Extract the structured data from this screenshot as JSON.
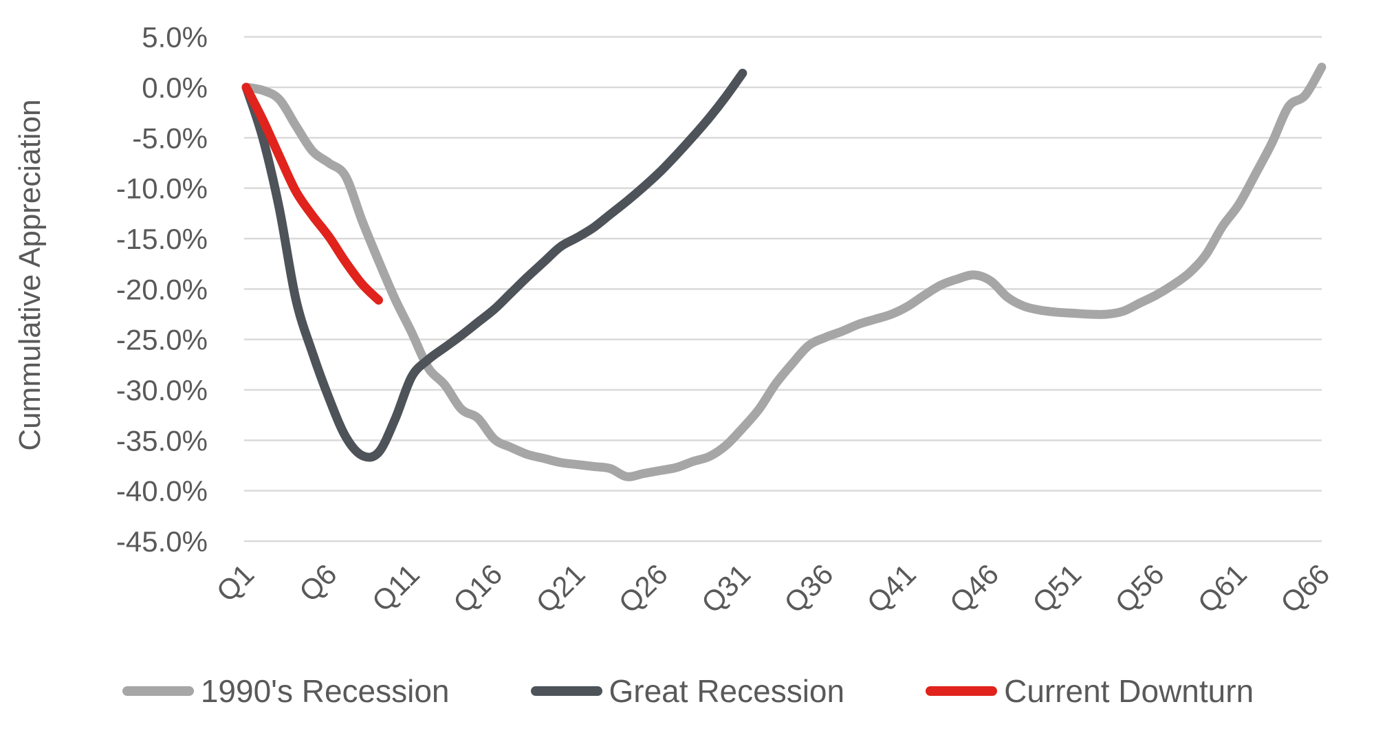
{
  "chart_data": {
    "type": "line",
    "ylabel": "Cummulative Appreciation",
    "xlabel": "",
    "ylim": [
      -45,
      5
    ],
    "ytick_step": 5,
    "grid": true,
    "legend_position": "bottom",
    "smooth_lines": true,
    "y_tick_labels": [
      "5.0%",
      "0.0%",
      "-5.0%",
      "-10.0%",
      "-15.0%",
      "-20.0%",
      "-25.0%",
      "-30.0%",
      "-35.0%",
      "-40.0%",
      "-45.0%"
    ],
    "x_tick_labels": [
      "Q1",
      "Q6",
      "Q11",
      "Q16",
      "Q21",
      "Q26",
      "Q31",
      "Q36",
      "Q41",
      "Q46",
      "Q51",
      "Q56",
      "Q61",
      "Q66"
    ],
    "x_tick_interval": 5,
    "x_categories_count": 66,
    "series": [
      {
        "name": "1990's Recession",
        "color": "#A6A6A6",
        "start_quarter": 1,
        "values": [
          0.0,
          -0.3,
          -1.2,
          -3.8,
          -6.3,
          -7.5,
          -8.8,
          -13.2,
          -17.2,
          -21.0,
          -24.3,
          -27.8,
          -29.5,
          -31.9,
          -32.8,
          -34.9,
          -35.7,
          -36.4,
          -36.8,
          -37.2,
          -37.4,
          -37.6,
          -37.8,
          -38.6,
          -38.3,
          -38.0,
          -37.7,
          -37.1,
          -36.6,
          -35.5,
          -33.8,
          -31.9,
          -29.4,
          -27.4,
          -25.6,
          -24.8,
          -24.2,
          -23.5,
          -23.0,
          -22.5,
          -21.7,
          -20.6,
          -19.6,
          -19.0,
          -18.6,
          -19.2,
          -20.8,
          -21.7,
          -22.1,
          -22.3,
          -22.4,
          -22.5,
          -22.5,
          -22.2,
          -21.4,
          -20.6,
          -19.6,
          -18.4,
          -16.6,
          -13.8,
          -11.6,
          -8.6,
          -5.5,
          -1.9,
          -0.8,
          2.0
        ]
      },
      {
        "name": "Great Recession",
        "color": "#4D5359",
        "start_quarter": 1,
        "values": [
          0.0,
          -5.0,
          -12.0,
          -21.0,
          -26.3,
          -30.8,
          -34.6,
          -36.5,
          -36.2,
          -32.9,
          -28.7,
          -27.0,
          -25.8,
          -24.6,
          -23.3,
          -22.0,
          -20.4,
          -18.8,
          -17.3,
          -15.8,
          -14.9,
          -13.9,
          -12.6,
          -11.3,
          -9.9,
          -8.4,
          -6.7,
          -4.9,
          -3.0,
          -0.9,
          1.4
        ]
      },
      {
        "name": "Current Downturn",
        "color": "#E0231C",
        "start_quarter": 1,
        "values": [
          0.0,
          -3.2,
          -6.8,
          -10.3,
          -12.7,
          -14.8,
          -17.3,
          -19.5,
          -21.1
        ]
      }
    ],
    "style": {
      "grid_color": "#D9D9D9",
      "text_color": "#595959",
      "background": "#FFFFFF",
      "line_width": 13,
      "axis_font_size": 42,
      "ylabel_font_size": 44,
      "legend_font_size": 46
    }
  }
}
